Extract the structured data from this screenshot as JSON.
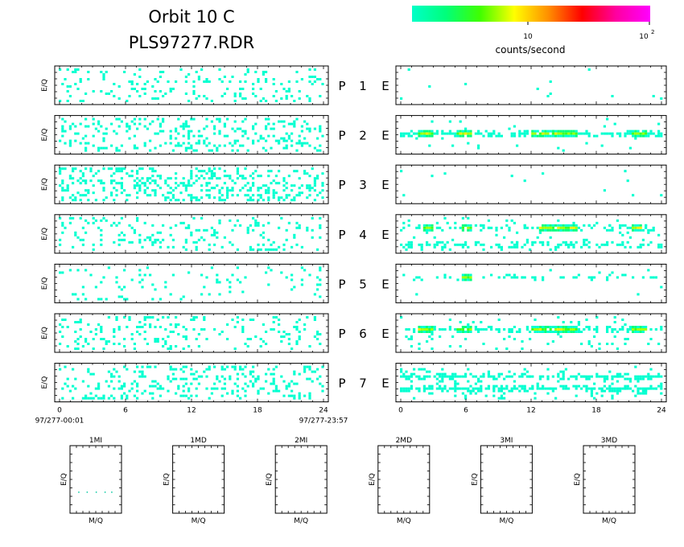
{
  "header": {
    "title_line1": "Orbit 10 C",
    "title_line2": "PLS97277.RDR"
  },
  "colorbar": {
    "tick_10": "10",
    "tick_100_base": "10",
    "tick_100_exp": "2",
    "label": "counts/second",
    "colors": [
      "#00ffc8",
      "#00ff7a",
      "#40ff00",
      "#ffff00",
      "#ff9000",
      "#ff0000",
      "#ff00a0",
      "#ff00ff"
    ]
  },
  "panel_y_label": "E/Q",
  "panel_labels": [
    {
      "p": "P",
      "n": "1",
      "e": "E"
    },
    {
      "p": "P",
      "n": "2",
      "e": "E"
    },
    {
      "p": "P",
      "n": "3",
      "e": "E"
    },
    {
      "p": "P",
      "n": "4",
      "e": "E"
    },
    {
      "p": "P",
      "n": "5",
      "e": "E"
    },
    {
      "p": "P",
      "n": "6",
      "e": "E"
    },
    {
      "p": "P",
      "n": "7",
      "e": "E"
    }
  ],
  "x_axis": {
    "ticks": [
      "0",
      "6",
      "12",
      "18",
      "24"
    ],
    "start_label": "97/277-00:01",
    "end_label": "97/277-23:57"
  },
  "small_panels": {
    "titles": [
      "1MI",
      "1MD",
      "2MI",
      "2MD",
      "3MI",
      "3MD"
    ],
    "y_label": "E/Q",
    "x_label": "M/Q"
  },
  "chart_data": {
    "type": "heatmap",
    "title": "Orbit 10 C PLS97277.RDR",
    "x_range_hours": [
      0,
      24
    ],
    "x_ticks": [
      0,
      6,
      12,
      18,
      24
    ],
    "xlabel_start": "97/277-00:01",
    "xlabel_end": "97/277-23:57",
    "ylabel": "E/Q",
    "colorbar_label": "counts/second",
    "colorbar_ticks": [
      "10",
      "10^2"
    ],
    "left_column": [
      {
        "panel": "P 1",
        "density": 0.13,
        "level": "low"
      },
      {
        "panel": "P 2",
        "density": 0.2,
        "level": "low"
      },
      {
        "panel": "P 3",
        "density": 0.25,
        "level": "low"
      },
      {
        "panel": "P 4",
        "density": 0.12,
        "level": "low"
      },
      {
        "panel": "P 5",
        "density": 0.07,
        "level": "low"
      },
      {
        "panel": "P 6",
        "density": 0.13,
        "level": "low"
      },
      {
        "panel": "P 7",
        "density": 0.17,
        "level": "low"
      }
    ],
    "right_column": [
      {
        "panel": "P 1 E",
        "density": 0.01,
        "bands": []
      },
      {
        "panel": "P 2 E",
        "density": 0.02,
        "bands": [
          {
            "row": 0.45,
            "density": 0.7,
            "hot_intervals_hours": [
              [
                1.5,
                3.0
              ],
              [
                5.0,
                6.5
              ],
              [
                12.0,
                16.0
              ],
              [
                21.0,
                22.5
              ]
            ]
          }
        ]
      },
      {
        "panel": "P 3 E",
        "density": 0.01,
        "bands": []
      },
      {
        "panel": "P 4 E",
        "density": 0.06,
        "bands": [
          {
            "row": 0.3,
            "density": 0.4,
            "hot_intervals_hours": [
              [
                2.0,
                3.0
              ],
              [
                5.5,
                6.5
              ],
              [
                12.5,
                16.0
              ],
              [
                21.0,
                22.0
              ]
            ]
          },
          {
            "row": 0.85,
            "density": 0.45,
            "hot_intervals_hours": []
          }
        ]
      },
      {
        "panel": "P 5 E",
        "density": 0.01,
        "bands": [
          {
            "row": 0.3,
            "density": 0.25,
            "hot_intervals_hours": [
              [
                5.5,
                6.5
              ]
            ]
          }
        ]
      },
      {
        "panel": "P 6 E",
        "density": 0.05,
        "bands": [
          {
            "row": 0.4,
            "density": 0.6,
            "hot_intervals_hours": [
              [
                1.5,
                3.0
              ],
              [
                5.0,
                6.5
              ],
              [
                12.0,
                16.0
              ],
              [
                21.0,
                22.5
              ]
            ]
          }
        ]
      },
      {
        "panel": "P 7 E",
        "density": 0.1,
        "bands": [
          {
            "row": 0.28,
            "density": 0.75,
            "hot_intervals_hours": []
          },
          {
            "row": 0.68,
            "density": 0.75,
            "hot_intervals_hours": []
          }
        ]
      }
    ],
    "small_panels": [
      {
        "title": "1MI",
        "xlabel": "M/Q",
        "ylabel": "E/Q",
        "has_points": true
      },
      {
        "title": "1MD",
        "xlabel": "M/Q",
        "ylabel": "E/Q",
        "has_points": false
      },
      {
        "title": "2MI",
        "xlabel": "M/Q",
        "ylabel": "E/Q",
        "has_points": false
      },
      {
        "title": "2MD",
        "xlabel": "M/Q",
        "ylabel": "E/Q",
        "has_points": false
      },
      {
        "title": "3MI",
        "xlabel": "M/Q",
        "ylabel": "E/Q",
        "has_points": false
      },
      {
        "title": "3MD",
        "xlabel": "M/Q",
        "ylabel": "E/Q",
        "has_points": false
      }
    ]
  }
}
